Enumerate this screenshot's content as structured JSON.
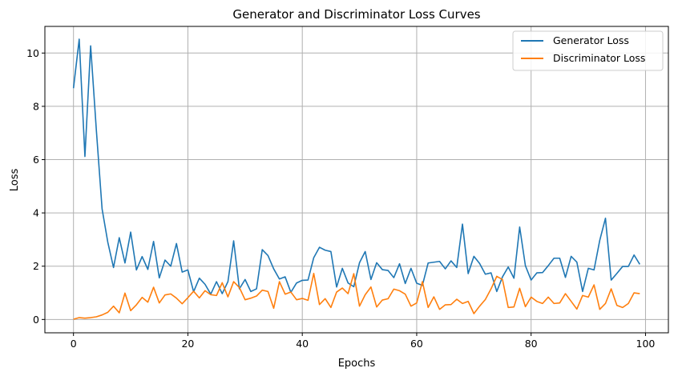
{
  "chart_data": {
    "type": "line",
    "title": "Generator and Discriminator Loss Curves",
    "xlabel": "Epochs",
    "ylabel": "Loss",
    "xlim": [
      -5,
      104
    ],
    "ylim": [
      -0.5,
      11
    ],
    "x_ticks": [
      0,
      20,
      40,
      60,
      80,
      100
    ],
    "y_ticks": [
      0,
      2,
      4,
      6,
      8,
      10
    ],
    "grid": true,
    "legend_position": "top-right",
    "x": [
      0,
      1,
      2,
      3,
      4,
      5,
      6,
      7,
      8,
      9,
      10,
      11,
      12,
      13,
      14,
      15,
      16,
      17,
      18,
      19,
      20,
      21,
      22,
      23,
      24,
      25,
      26,
      27,
      28,
      29,
      30,
      31,
      32,
      33,
      34,
      35,
      36,
      37,
      38,
      39,
      40,
      41,
      42,
      43,
      44,
      45,
      46,
      47,
      48,
      49,
      50,
      51,
      52,
      53,
      54,
      55,
      56,
      57,
      58,
      59,
      60,
      61,
      62,
      63,
      64,
      65,
      66,
      67,
      68,
      69,
      70,
      71,
      72,
      73,
      74,
      75,
      76,
      77,
      78,
      79,
      80,
      81,
      82,
      83,
      84,
      85,
      86,
      87,
      88,
      89,
      90,
      91,
      92,
      93,
      94,
      95,
      96,
      97,
      98,
      99
    ],
    "series": [
      {
        "name": "Generator Loss",
        "color": "#1f77b4",
        "values": [
          8.68,
          10.52,
          6.12,
          10.27,
          7.1,
          4.15,
          2.9,
          1.95,
          3.07,
          2.12,
          3.28,
          1.86,
          2.36,
          1.88,
          2.93,
          1.56,
          2.23,
          2.0,
          2.85,
          1.78,
          1.86,
          1.04,
          1.55,
          1.32,
          0.95,
          1.42,
          0.97,
          1.42,
          2.95,
          1.15,
          1.5,
          1.05,
          1.15,
          2.62,
          2.4,
          1.9,
          1.52,
          1.6,
          1.02,
          1.37,
          1.47,
          1.48,
          2.32,
          2.71,
          2.6,
          2.55,
          1.22,
          1.92,
          1.37,
          1.23,
          2.13,
          2.55,
          1.5,
          2.13,
          1.87,
          1.84,
          1.57,
          2.09,
          1.35,
          1.92,
          1.36,
          1.28,
          2.12,
          2.15,
          2.18,
          1.9,
          2.2,
          1.95,
          3.58,
          1.72,
          2.37,
          2.1,
          1.7,
          1.75,
          1.05,
          1.6,
          1.97,
          1.55,
          3.47,
          2.02,
          1.48,
          1.75,
          1.76,
          2.02,
          2.3,
          2.3,
          1.58,
          2.37,
          2.15,
          1.05,
          1.92,
          1.86,
          2.97,
          3.8,
          1.48,
          1.73,
          1.99,
          1.99,
          2.42,
          2.07
        ]
      },
      {
        "name": "Discriminator Loss",
        "color": "#ff7f0e",
        "values": [
          0.01,
          0.07,
          0.05,
          0.07,
          0.1,
          0.17,
          0.27,
          0.5,
          0.25,
          0.99,
          0.33,
          0.55,
          0.83,
          0.65,
          1.21,
          0.62,
          0.92,
          0.96,
          0.8,
          0.59,
          0.82,
          1.06,
          0.81,
          1.08,
          0.93,
          0.9,
          1.38,
          0.85,
          1.42,
          1.2,
          0.74,
          0.8,
          0.88,
          1.1,
          1.05,
          0.42,
          1.42,
          0.95,
          1.03,
          0.74,
          0.79,
          0.72,
          1.73,
          0.56,
          0.78,
          0.45,
          1.03,
          1.18,
          0.97,
          1.72,
          0.5,
          0.93,
          1.22,
          0.47,
          0.73,
          0.78,
          1.14,
          1.08,
          0.95,
          0.5,
          0.62,
          1.42,
          0.45,
          0.85,
          0.38,
          0.55,
          0.56,
          0.76,
          0.6,
          0.68,
          0.22,
          0.5,
          0.75,
          1.15,
          1.62,
          1.5,
          0.45,
          0.47,
          1.17,
          0.48,
          0.84,
          0.68,
          0.6,
          0.84,
          0.6,
          0.62,
          0.97,
          0.68,
          0.39,
          0.9,
          0.84,
          1.3,
          0.38,
          0.6,
          1.15,
          0.53,
          0.45,
          0.6,
          1.0,
          0.97
        ]
      }
    ]
  }
}
